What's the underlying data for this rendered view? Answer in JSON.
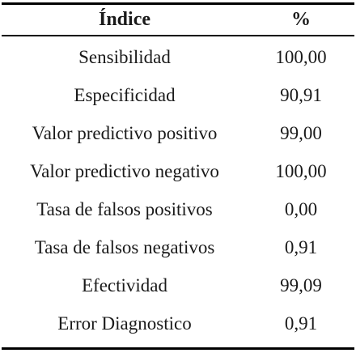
{
  "table": {
    "headers": {
      "index": "Índice",
      "value": "%"
    },
    "rows": [
      {
        "index": "Sensibilidad",
        "value": "100,00"
      },
      {
        "index": "Especificidad",
        "value": "90,91"
      },
      {
        "index": "Valor predictivo positivo",
        "value": "99,00"
      },
      {
        "index": "Valor predictivo negativo",
        "value": "100,00"
      },
      {
        "index": "Tasa de falsos positivos",
        "value": "0,00"
      },
      {
        "index": "Tasa de falsos negativos",
        "value": "0,91"
      },
      {
        "index": "Efectividad",
        "value": "99,09"
      },
      {
        "index": "Error Diagnostico",
        "value": "0,91"
      }
    ]
  }
}
